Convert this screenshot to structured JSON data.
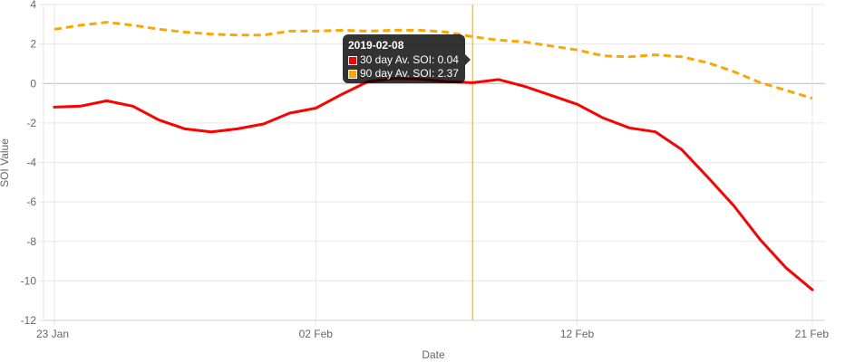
{
  "chart_data": {
    "type": "line",
    "xlabel": "Date",
    "ylabel": "SOI Value",
    "ylim": [
      -12,
      4
    ],
    "y_ticks": [
      4,
      2,
      0,
      -2,
      -4,
      -6,
      -8,
      -10,
      -12
    ],
    "x_ticks": [
      "23 Jan",
      "02 Feb",
      "12 Feb",
      "21 Feb"
    ],
    "x_range": [
      "2019-01-23",
      "2019-02-21"
    ],
    "grid": true,
    "x": [
      "2019-01-23",
      "2019-01-24",
      "2019-01-25",
      "2019-01-26",
      "2019-01-27",
      "2019-01-28",
      "2019-01-29",
      "2019-01-30",
      "2019-01-31",
      "2019-02-01",
      "2019-02-02",
      "2019-02-03",
      "2019-02-04",
      "2019-02-05",
      "2019-02-06",
      "2019-02-07",
      "2019-02-08",
      "2019-02-09",
      "2019-02-10",
      "2019-02-11",
      "2019-02-12",
      "2019-02-13",
      "2019-02-14",
      "2019-02-15",
      "2019-02-16",
      "2019-02-17",
      "2019-02-18",
      "2019-02-19",
      "2019-02-20",
      "2019-02-21"
    ],
    "series": [
      {
        "name": "30 day Av. SOI",
        "color": "#ff0000",
        "style": "solid",
        "values": [
          -1.2,
          -1.15,
          -0.88,
          -1.15,
          -1.85,
          -2.3,
          -2.45,
          -2.3,
          -2.05,
          -1.5,
          -1.25,
          -0.55,
          0.1,
          0.25,
          0.22,
          0.1,
          0.04,
          0.2,
          -0.15,
          -0.6,
          -1.05,
          -1.75,
          -2.25,
          -2.45,
          -3.35,
          -4.75,
          -6.2,
          -7.9,
          -9.35,
          -10.45
        ]
      },
      {
        "name": "90 day Av. SOI",
        "color": "#ffa500",
        "style": "dashed",
        "values": [
          2.75,
          2.95,
          3.1,
          2.95,
          2.75,
          2.6,
          2.5,
          2.45,
          2.45,
          2.65,
          2.65,
          2.7,
          2.65,
          2.7,
          2.7,
          2.6,
          2.37,
          2.2,
          2.1,
          1.9,
          1.7,
          1.4,
          1.35,
          1.45,
          1.35,
          1.05,
          0.6,
          0.05,
          -0.35,
          -0.75
        ]
      }
    ],
    "hover_index": 16,
    "tooltip": {
      "title": "2019-02-08",
      "rows": [
        "30 day Av. SOI: 0.04",
        "90 day Av. SOI: 2.37"
      ]
    }
  }
}
